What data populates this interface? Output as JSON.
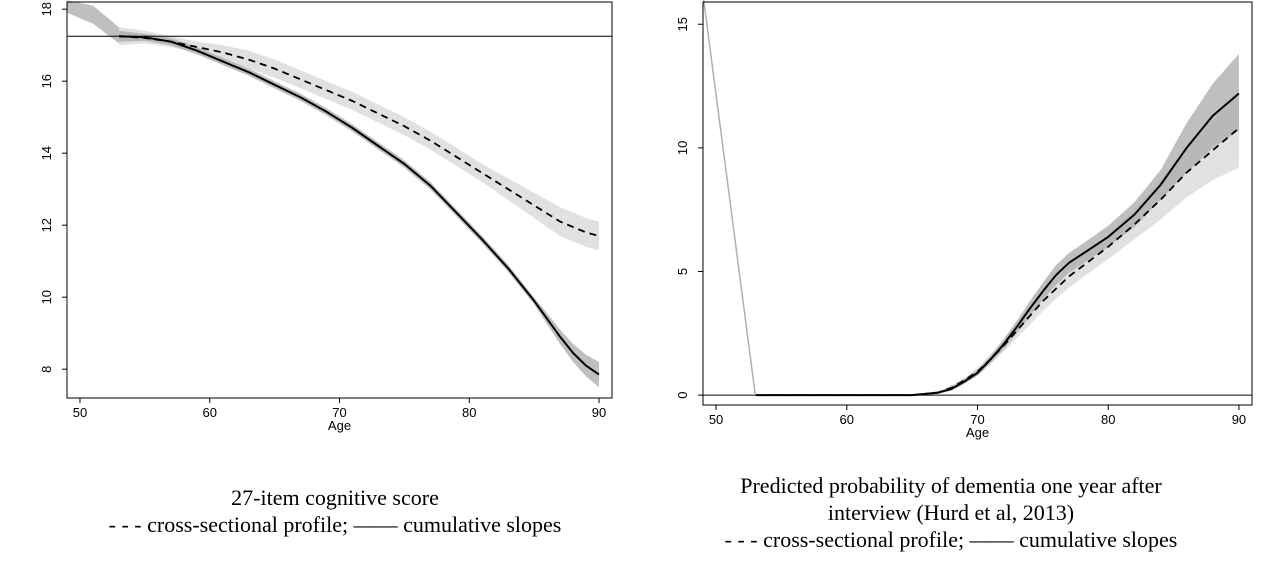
{
  "chart_data": [
    {
      "type": "line",
      "xlabel": "Age",
      "ylabel": "",
      "xlim": [
        49,
        91
      ],
      "ylim": [
        7.2,
        18.2
      ],
      "xticks": [
        50,
        60,
        70,
        80,
        90
      ],
      "yticks": [
        8,
        10,
        12,
        14,
        16,
        18
      ],
      "reference_line_y": 17.25,
      "caption_lines": [
        "27-item cognitive score",
        "- - - cross-sectional profile; —— cumulative slopes"
      ],
      "series": [
        {
          "style": "dashed",
          "x": [
            53,
            55,
            57,
            59,
            61,
            63,
            65,
            67,
            69,
            71,
            73,
            75,
            77,
            79,
            81,
            83,
            85,
            87,
            89,
            90
          ],
          "values": [
            17.25,
            17.2,
            17.1,
            16.95,
            16.8,
            16.6,
            16.35,
            16.05,
            15.75,
            15.45,
            15.1,
            14.75,
            14.35,
            13.9,
            13.45,
            13.0,
            12.55,
            12.1,
            11.8,
            11.7
          ],
          "ci_lower": [
            17.0,
            17.05,
            16.95,
            16.8,
            16.6,
            16.35,
            16.1,
            15.8,
            15.5,
            15.2,
            14.85,
            14.5,
            14.1,
            13.65,
            13.2,
            12.7,
            12.2,
            11.7,
            11.4,
            11.3
          ],
          "ci_upper": [
            17.5,
            17.4,
            17.25,
            17.1,
            17.0,
            16.85,
            16.6,
            16.3,
            16.0,
            15.7,
            15.35,
            15.0,
            14.6,
            14.15,
            13.7,
            13.3,
            12.9,
            12.5,
            12.2,
            12.1
          ]
        },
        {
          "style": "solid",
          "x": [
            53,
            55,
            57,
            59,
            61,
            63,
            65,
            67,
            69,
            71,
            73,
            75,
            77,
            79,
            81,
            83,
            85,
            87,
            88,
            89,
            90
          ],
          "values": [
            17.25,
            17.22,
            17.1,
            16.85,
            16.55,
            16.25,
            15.9,
            15.55,
            15.15,
            14.7,
            14.2,
            13.7,
            13.1,
            12.35,
            11.6,
            10.8,
            9.9,
            8.9,
            8.45,
            8.1,
            7.85
          ],
          "ci_lower": [
            17.1,
            17.12,
            17.0,
            16.75,
            16.45,
            16.15,
            15.8,
            15.45,
            15.05,
            14.6,
            14.1,
            13.6,
            13.0,
            12.25,
            11.5,
            10.7,
            9.8,
            8.7,
            8.2,
            7.8,
            7.5
          ],
          "ci_upper": [
            17.4,
            17.32,
            17.2,
            16.95,
            16.65,
            16.35,
            16.0,
            15.65,
            15.25,
            14.8,
            14.3,
            13.8,
            13.2,
            12.45,
            11.7,
            10.9,
            10.0,
            9.1,
            8.7,
            8.4,
            8.2
          ]
        },
        {
          "style": "band-only",
          "x": [
            49,
            51,
            53
          ],
          "ci_lower": [
            17.9,
            17.6,
            17.05
          ],
          "ci_upper": [
            18.25,
            18.1,
            17.5
          ]
        }
      ]
    },
    {
      "type": "line",
      "xlabel": "Age",
      "ylabel": "",
      "xlim": [
        49,
        91
      ],
      "ylim": [
        -0.4,
        15.9
      ],
      "xticks": [
        50,
        60,
        70,
        80,
        90
      ],
      "yticks": [
        0,
        5,
        10,
        15
      ],
      "reference_line_y": 0,
      "caption_lines": [
        "Predicted probability of dementia one year after",
        "interview (Hurd et al, 2013)",
        "- - - cross-sectional profile; —— cumulative slopes"
      ],
      "series": [
        {
          "style": "dashed",
          "x": [
            53,
            60,
            65,
            67,
            68,
            69,
            70,
            71,
            72,
            73,
            74,
            75,
            76,
            77,
            78,
            80,
            82,
            84,
            86,
            88,
            90
          ],
          "values": [
            0,
            0,
            0,
            0.1,
            0.3,
            0.6,
            0.95,
            1.45,
            2.0,
            2.6,
            3.2,
            3.8,
            4.3,
            4.8,
            5.2,
            6.0,
            6.9,
            7.9,
            9.0,
            9.9,
            10.8
          ],
          "ci_lower": [
            0,
            0,
            0,
            0.05,
            0.2,
            0.5,
            0.8,
            1.25,
            1.75,
            2.3,
            2.85,
            3.4,
            3.9,
            4.35,
            4.75,
            5.5,
            6.3,
            7.1,
            8.0,
            8.7,
            9.2
          ],
          "ci_upper": [
            0,
            0,
            0,
            0.15,
            0.4,
            0.7,
            1.1,
            1.65,
            2.25,
            2.9,
            3.55,
            4.2,
            4.7,
            5.25,
            5.65,
            6.5,
            7.5,
            8.7,
            10.0,
            11.1,
            12.4
          ]
        },
        {
          "style": "solid",
          "x": [
            53,
            60,
            65,
            67,
            68,
            69,
            70,
            71,
            72,
            73,
            74,
            75,
            76,
            77,
            78,
            80,
            82,
            84,
            86,
            88,
            90
          ],
          "values": [
            0,
            0,
            0,
            0.1,
            0.25,
            0.55,
            0.9,
            1.45,
            2.05,
            2.75,
            3.5,
            4.2,
            4.85,
            5.35,
            5.7,
            6.4,
            7.3,
            8.5,
            10.0,
            11.3,
            12.2
          ],
          "ci_lower": [
            0,
            0,
            0,
            0.05,
            0.18,
            0.45,
            0.78,
            1.3,
            1.85,
            2.5,
            3.2,
            3.85,
            4.45,
            4.95,
            5.3,
            6.0,
            6.8,
            7.9,
            9.0,
            10.0,
            10.7
          ],
          "ci_upper": [
            0,
            0,
            0,
            0.15,
            0.32,
            0.65,
            1.02,
            1.6,
            2.25,
            3.0,
            3.8,
            4.55,
            5.25,
            5.75,
            6.1,
            6.85,
            7.8,
            9.1,
            11.0,
            12.6,
            13.8
          ]
        },
        {
          "style": "light-line",
          "x": [
            49,
            53
          ],
          "values": [
            16.2,
            0
          ]
        }
      ]
    }
  ]
}
